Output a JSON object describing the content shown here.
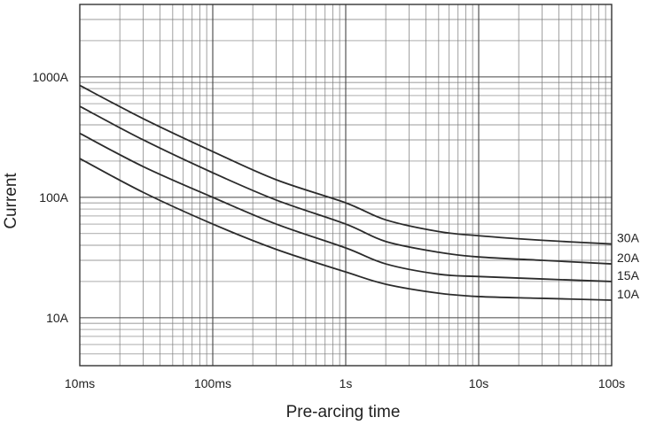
{
  "chart_data": {
    "type": "line",
    "title": "",
    "xlabel": "Pre-arcing time",
    "ylabel": "Current",
    "x_scale": "log",
    "y_scale": "log",
    "xlim": [
      "10ms",
      "100s"
    ],
    "ylim": [
      "4A",
      "4000A"
    ],
    "x_ticks": [
      {
        "value": 0.01,
        "label": "10ms"
      },
      {
        "value": 0.1,
        "label": "100ms"
      },
      {
        "value": 1,
        "label": "1s"
      },
      {
        "value": 10,
        "label": "10s"
      },
      {
        "value": 100,
        "label": "100s"
      }
    ],
    "y_ticks": [
      {
        "value": 10,
        "label": "10A"
      },
      {
        "value": 100,
        "label": "100A"
      },
      {
        "value": 1000,
        "label": "1000A"
      }
    ],
    "grid": true,
    "line_color": "#2b2b2b",
    "series": [
      {
        "name": "30A",
        "x": [
          0.01,
          0.03,
          0.1,
          0.3,
          1,
          2,
          5,
          10,
          30,
          100
        ],
        "y": [
          850,
          450,
          240,
          140,
          90,
          65,
          52,
          48,
          44,
          41
        ]
      },
      {
        "name": "20A",
        "x": [
          0.01,
          0.03,
          0.1,
          0.3,
          1,
          2,
          5,
          10,
          30,
          100
        ],
        "y": [
          570,
          300,
          160,
          95,
          60,
          43,
          35,
          32,
          30,
          28
        ]
      },
      {
        "name": "15A",
        "x": [
          0.01,
          0.03,
          0.1,
          0.3,
          1,
          2,
          5,
          10,
          30,
          100
        ],
        "y": [
          340,
          180,
          100,
          60,
          38,
          28,
          23,
          22,
          21,
          20
        ]
      },
      {
        "name": "10A",
        "x": [
          0.01,
          0.03,
          0.1,
          0.3,
          1,
          2,
          5,
          10,
          30,
          100
        ],
        "y": [
          210,
          110,
          60,
          37,
          24,
          19,
          16,
          15,
          14.5,
          14
        ]
      }
    ]
  }
}
